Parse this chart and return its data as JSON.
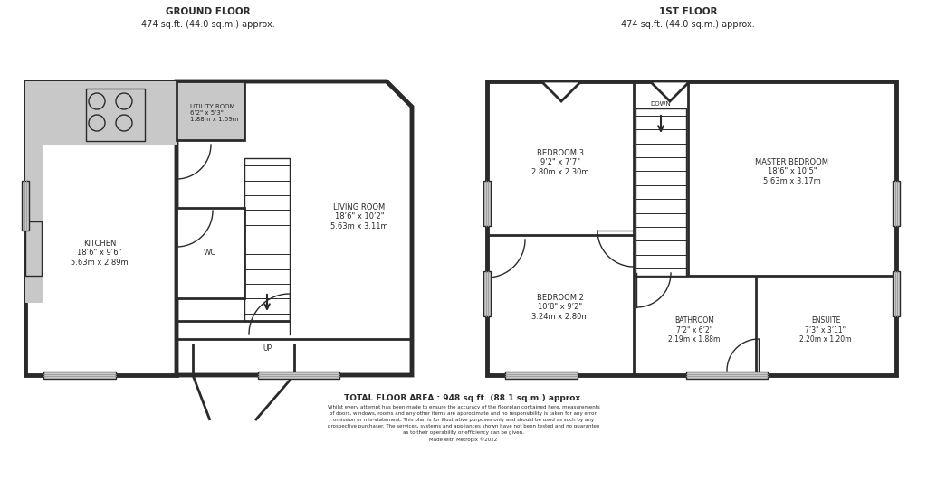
{
  "bg": "#ffffff",
  "wc": "#2a2a2a",
  "gray": "#c8c8c8",
  "dgray": "#999999",
  "wlw": 3.5,
  "ilw": 2.0,
  "tlw": 1.0,
  "title_gf_line1": "GROUND FLOOR",
  "title_gf_line2": "474 sq.ft. (44.0 sq.m.) approx.",
  "title_ff_line1": "1ST FLOOR",
  "title_ff_line2": "474 sq.ft. (44.0 sq.m.) approx.",
  "foot1": "TOTAL FLOOR AREA : 948 sq.ft. (88.1 sq.m.) approx.",
  "foot2": "Whilst every attempt has been made to ensure the accuracy of the floorplan contained here, measurements\nof doors, windows, rooms and any other items are approximate and no responsibility is taken for any error,\nomission or mis-statement. This plan is for illustrative purposes only and should be used as such by any\nprospective purchaser. The services, systems and appliances shown have not been tested and no guarantee\nas to their operability or efficiency can be given.\nMade with Metropix ©2022",
  "lbl_kitchen": "KITCHEN\n18’6\" x 9’6\"\n5.63m x 2.89m",
  "lbl_utility": "UTILITY ROOM\n6’2\" x 5’3\"\n1.88m x 1.59m",
  "lbl_wc": "WC",
  "lbl_living": "LIVING ROOM\n18’6\" x 10’2\"\n5.63m x 3.11m",
  "lbl_bed3": "BEDROOM 3\n9’2\" x 7’7\"\n2.80m x 2.30m",
  "lbl_master": "MASTER BEDROOM\n18’6\" x 10’5\"\n5.63m x 3.17m",
  "lbl_bed2": "BEDROOM 2\n10’8\" x 9’2\"\n3.24m x 2.80m",
  "lbl_bath": "BATHROOM\n7’2\" x 6’2\"\n2.19m x 1.88m",
  "lbl_ensuite": "ENSUITE\n7’3\" x 3’11\"\n2.20m x 1.20m",
  "lbl_up": "UP",
  "lbl_down": "DOWN"
}
